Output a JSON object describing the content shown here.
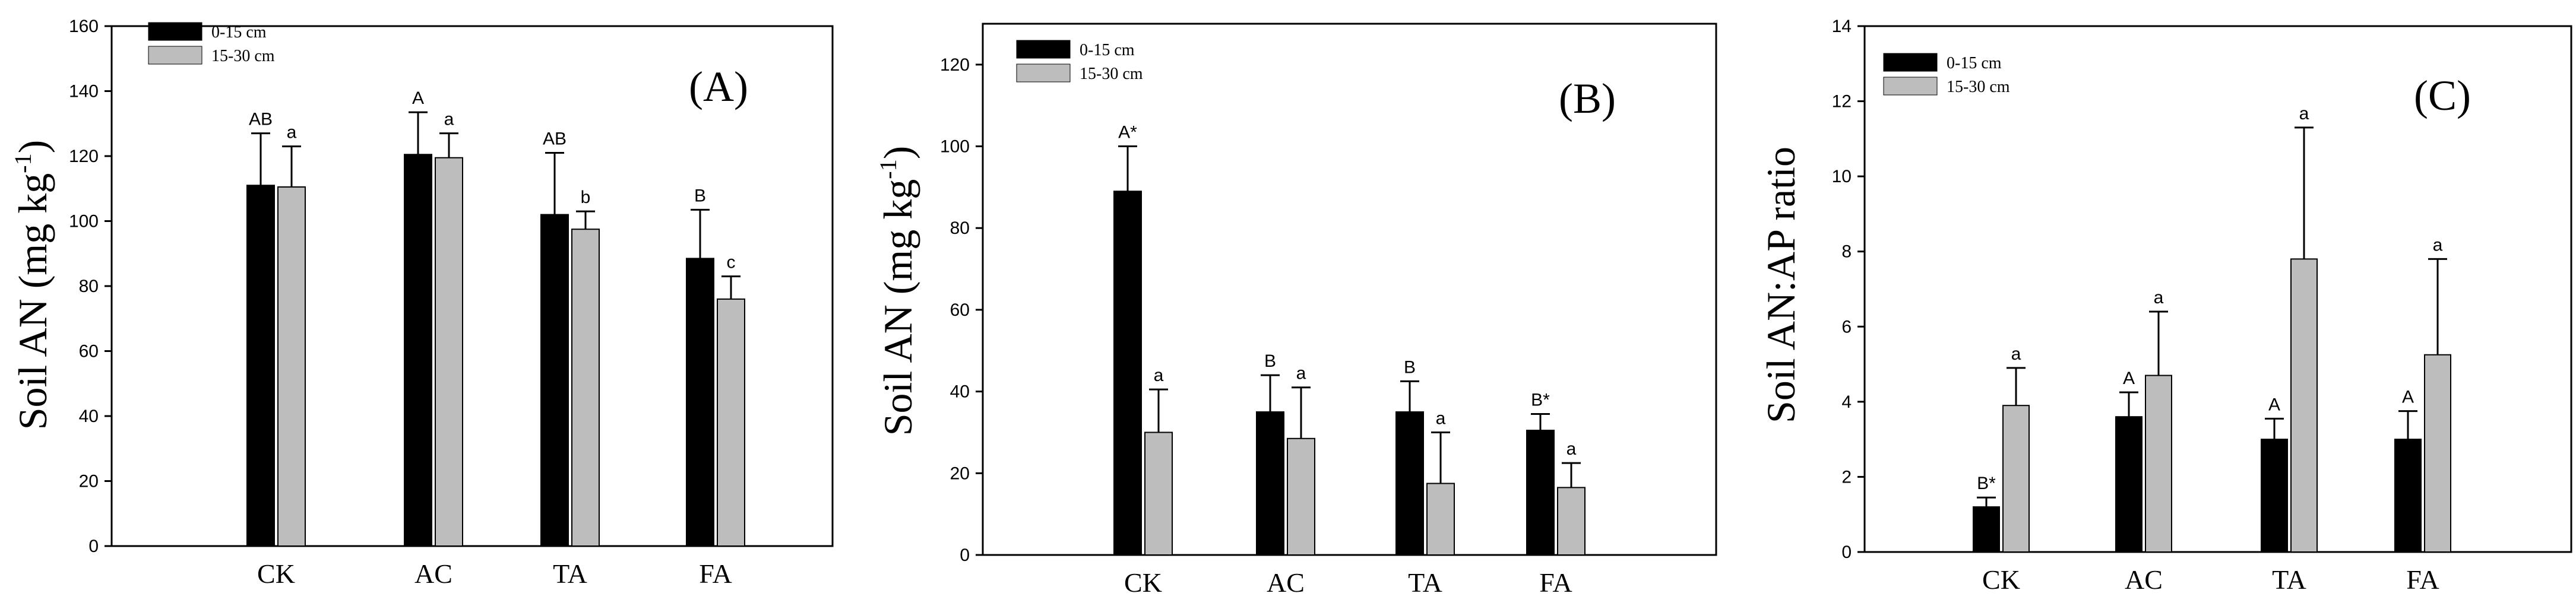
{
  "colors": {
    "series_0_15": "#000000",
    "series_15_30": "#bdbdbd"
  },
  "chart_data": [
    {
      "type": "bar",
      "panel": "(A)",
      "ylabel_text": "Soil AN (mg kg",
      "ylabel_sup": "-1",
      "ylabel_close": ")",
      "ylim": [
        0,
        160
      ],
      "yticks": [
        0,
        20,
        40,
        60,
        80,
        100,
        120,
        140,
        160
      ],
      "categories": [
        "CK",
        "AC",
        "TA",
        "FA"
      ],
      "series": [
        {
          "name": "0-15 cm",
          "values": [
            111,
            120.5,
            102,
            88.5
          ],
          "errors": [
            16,
            13,
            19,
            15
          ],
          "labels": [
            "AB",
            "A",
            "AB",
            "B"
          ]
        },
        {
          "name": "15-30 cm",
          "values": [
            110.5,
            119.5,
            97.5,
            76
          ],
          "errors": [
            12.5,
            7.5,
            5.5,
            7
          ],
          "labels": [
            "a",
            "a",
            "b",
            "c"
          ]
        }
      ]
    },
    {
      "type": "bar",
      "panel": "(B)",
      "ylabel_text": "Soil AN (mg kg",
      "ylabel_sup": "-1",
      "ylabel_close": ")",
      "ylim": [
        0,
        130
      ],
      "yticks": [
        0,
        20,
        40,
        60,
        80,
        100,
        120
      ],
      "categories": [
        "CK",
        "AC",
        "TA",
        "FA"
      ],
      "series": [
        {
          "name": "0-15 cm",
          "values": [
            89,
            35,
            35,
            30.5
          ],
          "errors": [
            11,
            9,
            7.5,
            4
          ],
          "labels": [
            "A*",
            "B",
            "B",
            "B*"
          ]
        },
        {
          "name": "15-30 cm",
          "values": [
            30,
            28.5,
            17.5,
            16.5
          ],
          "errors": [
            10.5,
            12.5,
            12.5,
            6
          ],
          "labels": [
            "a",
            "a",
            "a",
            "a"
          ]
        }
      ]
    },
    {
      "type": "bar",
      "panel": "(C)",
      "ylabel_text": "Soil AN:AP ratio",
      "ylabel_sup": "",
      "ylabel_close": "",
      "ylim": [
        0,
        14
      ],
      "yticks": [
        0,
        2,
        4,
        6,
        8,
        10,
        12,
        14
      ],
      "categories": [
        "CK",
        "AC",
        "TA",
        "FA"
      ],
      "series": [
        {
          "name": "0-15 cm",
          "values": [
            1.2,
            3.6,
            3.0,
            3.0
          ],
          "errors": [
            0.25,
            0.65,
            0.55,
            0.75
          ],
          "labels": [
            "B*",
            "A",
            "A",
            "A"
          ]
        },
        {
          "name": "15-30 cm",
          "values": [
            3.9,
            4.7,
            7.8,
            5.25
          ],
          "errors": [
            1.0,
            1.7,
            3.5,
            2.55
          ],
          "labels": [
            "a",
            "a",
            "a",
            "a"
          ]
        }
      ]
    }
  ]
}
